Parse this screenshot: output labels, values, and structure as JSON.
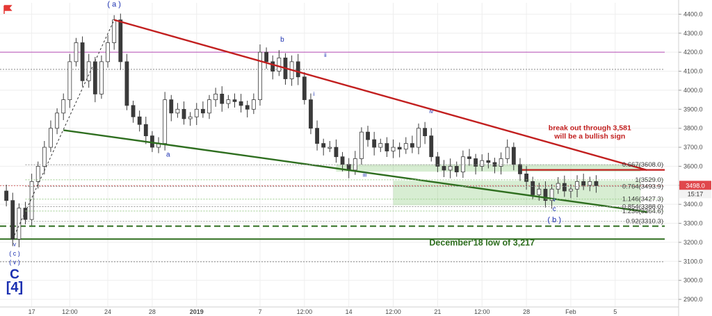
{
  "chart_data": {
    "type": "candlestick",
    "instrument_colors": {
      "up": "#26a69a",
      "down": "#c94b4b",
      "candle": "#3a3a3a"
    },
    "price_scale": {
      "ylim": [
        2860,
        4460
      ],
      "ticks": [
        4400,
        4300,
        4200,
        4100,
        4000,
        3900,
        3800,
        3700,
        3600,
        3500,
        3400,
        3300,
        3200,
        3100,
        3000,
        2900
      ],
      "tick_labels": [
        "4400.0",
        "4300.0",
        "4200.0",
        "4100.0",
        "4000.0",
        "3900.0",
        "3800.0",
        "3700.0",
        "3600.0",
        "3500.0",
        "3400.0",
        "3300.0",
        "3200.0",
        "3100.0",
        "3000.0",
        "2900.0"
      ],
      "current_price": 3498.0,
      "current_price_label": "3498.0",
      "countdown_label": "15:17"
    },
    "time_scale": {
      "xlim": [
        0,
        107
      ],
      "tick_positions": [
        5,
        11,
        17,
        24,
        31,
        41,
        48,
        55,
        62,
        69,
        76,
        83,
        90,
        97
      ],
      "tick_labels": [
        "17",
        "12:00",
        "24",
        "28",
        "2019",
        "7",
        "12:00",
        "14",
        "12:00",
        "21",
        "12:00",
        "28",
        "Feb",
        "5"
      ],
      "bold_ticks": [
        "2019"
      ]
    },
    "price_series": [
      [
        0,
        3470
      ],
      [
        1,
        3420
      ],
      [
        2,
        3217
      ],
      [
        3,
        3380
      ],
      [
        4,
        3320
      ],
      [
        5,
        3520
      ],
      [
        6,
        3600
      ],
      [
        7,
        3700
      ],
      [
        8,
        3800
      ],
      [
        9,
        3880
      ],
      [
        10,
        3950
      ],
      [
        11,
        4150
      ],
      [
        12,
        4250
      ],
      [
        13,
        4050
      ],
      [
        14,
        4150
      ],
      [
        15,
        3980
      ],
      [
        16,
        4150
      ],
      [
        17,
        4250
      ],
      [
        18,
        4370
      ],
      [
        19,
        4150
      ],
      [
        20,
        3920
      ],
      [
        21,
        3860
      ],
      [
        22,
        3820
      ],
      [
        23,
        3760
      ],
      [
        24,
        3700
      ],
      [
        25,
        3720
      ],
      [
        26,
        3950
      ],
      [
        27,
        3880
      ],
      [
        28,
        3900
      ],
      [
        29,
        3850
      ],
      [
        30,
        3860
      ],
      [
        31,
        3900
      ],
      [
        32,
        3880
      ],
      [
        33,
        3950
      ],
      [
        34,
        3980
      ],
      [
        35,
        3930
      ],
      [
        36,
        3950
      ],
      [
        37,
        3940
      ],
      [
        38,
        3920
      ],
      [
        39,
        3900
      ],
      [
        40,
        3950
      ],
      [
        41,
        4200
      ],
      [
        42,
        4150
      ],
      [
        43,
        4100
      ],
      [
        44,
        4170
      ],
      [
        45,
        4060
      ],
      [
        46,
        4150
      ],
      [
        47,
        4070
      ],
      [
        48,
        3950
      ],
      [
        49,
        3800
      ],
      [
        50,
        3720
      ],
      [
        51,
        3700
      ],
      [
        52,
        3700
      ],
      [
        53,
        3650
      ],
      [
        54,
        3610
      ],
      [
        55,
        3580
      ],
      [
        56,
        3640
      ],
      [
        57,
        3780
      ],
      [
        58,
        3740
      ],
      [
        59,
        3700
      ],
      [
        60,
        3720
      ],
      [
        61,
        3680
      ],
      [
        62,
        3700
      ],
      [
        63,
        3690
      ],
      [
        64,
        3720
      ],
      [
        65,
        3700
      ],
      [
        66,
        3800
      ],
      [
        67,
        3760
      ],
      [
        68,
        3650
      ],
      [
        69,
        3600
      ],
      [
        70,
        3580
      ],
      [
        71,
        3600
      ],
      [
        72,
        3570
      ],
      [
        73,
        3650
      ],
      [
        74,
        3640
      ],
      [
        75,
        3600
      ],
      [
        76,
        3630
      ],
      [
        77,
        3620
      ],
      [
        78,
        3600
      ],
      [
        79,
        3640
      ],
      [
        80,
        3700
      ],
      [
        81,
        3610
      ],
      [
        82,
        3560
      ],
      [
        83,
        3520
      ],
      [
        84,
        3450
      ],
      [
        85,
        3480
      ],
      [
        86,
        3420
      ],
      [
        87,
        3480
      ],
      [
        88,
        3510
      ],
      [
        89,
        3470
      ],
      [
        90,
        3480
      ],
      [
        91,
        3520
      ],
      [
        92,
        3500
      ],
      [
        93,
        3520
      ],
      [
        94,
        3498
      ]
    ],
    "trendlines": [
      {
        "name": "red-upper-trendline",
        "color": "#c21f1f",
        "points": [
          [
            18,
            4370
          ],
          [
            102,
            3580
          ]
        ]
      },
      {
        "name": "green-lower-trendline",
        "color": "#2e6e1f",
        "points": [
          [
            10,
            3790
          ],
          [
            102,
            3360
          ]
        ]
      }
    ],
    "horizontal_lines": [
      {
        "name": "magenta-level",
        "price": 4200,
        "color": "#b44ab4",
        "style": "solid"
      },
      {
        "name": "grey-level-4110",
        "price": 4110,
        "color": "#888888",
        "style": "dotted"
      },
      {
        "name": "grey-level-3098",
        "price": 3098,
        "color": "#888888",
        "style": "dotted"
      },
      {
        "name": "red-breakout-level",
        "price": 3581,
        "color": "#c21f1f",
        "style": "solid",
        "from": 82
      },
      {
        "name": "current-price-level",
        "price": 3498,
        "color": "#d86a6a",
        "style": "dotted"
      },
      {
        "name": "green-dashed-level",
        "price": 3285,
        "color": "#2e6e1f",
        "style": "dashed"
      },
      {
        "name": "december-low-level",
        "price": 3217,
        "color": "#2e6e1f",
        "style": "solid"
      }
    ],
    "fib_levels": [
      {
        "ratio_label": "0.667(3608.0)",
        "price": 3608.0,
        "color": "#3c3c3c"
      },
      {
        "ratio_label": "1(3529.0)",
        "price": 3529.0,
        "color": "#3c8b3c"
      },
      {
        "ratio_label": "0.764(3493.9)",
        "price": 3493.9,
        "color": "#3c3c3c"
      },
      {
        "ratio_label": "1.146(3427.3)",
        "price": 3427.3,
        "color": "#3c8b3c"
      },
      {
        "ratio_label": "0.854(3388.0)",
        "price": 3388.0,
        "color": "#3c3c3c"
      },
      {
        "ratio_label": "1.236(3364.6)",
        "price": 3364.6,
        "color": "#3c8b3c"
      },
      {
        "ratio_label": "0.92(3310.3)",
        "price": 3310.3,
        "color": "#3c3c3c"
      }
    ],
    "zones": [
      {
        "name": "upper-green-zone",
        "x_from": 53,
        "x_to": 101,
        "y_from": 3572,
        "y_to": 3610,
        "color": "#6fbf5f"
      },
      {
        "name": "lower-green-zone",
        "x_from": 62,
        "x_to": 101,
        "y_from": 3395,
        "y_to": 3524,
        "color": "#6fbf5f"
      }
    ],
    "wave_labels": [
      {
        "text": "( a )",
        "x": 18,
        "y": 4440,
        "size": 11
      },
      {
        "text": "a",
        "x": 26.5,
        "y": 3650,
        "size": 10
      },
      {
        "text": "b",
        "x": 44.5,
        "y": 4255,
        "size": 10
      },
      {
        "text": "i",
        "x": 49.5,
        "y": 3970,
        "size": 8
      },
      {
        "text": "ii",
        "x": 51.3,
        "y": 4175,
        "size": 8
      },
      {
        "text": "iii",
        "x": 57.5,
        "y": 3545,
        "size": 8
      },
      {
        "text": "iv",
        "x": 68,
        "y": 3880,
        "size": 8
      },
      {
        "text": "v",
        "x": 87.4,
        "y": 3415,
        "size": 8
      },
      {
        "text": "c",
        "x": 87.4,
        "y": 3365,
        "size": 10
      },
      {
        "text": "( b )",
        "x": 87.4,
        "y": 3305,
        "size": 11
      },
      {
        "text": "v",
        "x": 2.3,
        "y": 3180,
        "size": 8
      },
      {
        "text": "( c )",
        "x": 2.3,
        "y": 3130,
        "size": 9
      },
      {
        "text": "( v )",
        "x": 2.3,
        "y": 3085,
        "size": 9
      },
      {
        "text": "C",
        "x": 2.3,
        "y": 3010,
        "size": 19
      },
      {
        "text": "[4]",
        "x": 2.3,
        "y": 2940,
        "size": 20
      }
    ],
    "annotations": [
      {
        "text": "break out through 3,581",
        "color": "#c21f1f",
        "x": 93,
        "y": 3790
      },
      {
        "text": "will be a bullish sign",
        "color": "#c21f1f",
        "x": 93,
        "y": 3745
      },
      {
        "text": "December'18 low of 3,217",
        "color": "#2e6e1f",
        "x": 76,
        "y": 3183
      }
    ]
  },
  "toolbar": {
    "flag_icon": "flag-icon"
  }
}
